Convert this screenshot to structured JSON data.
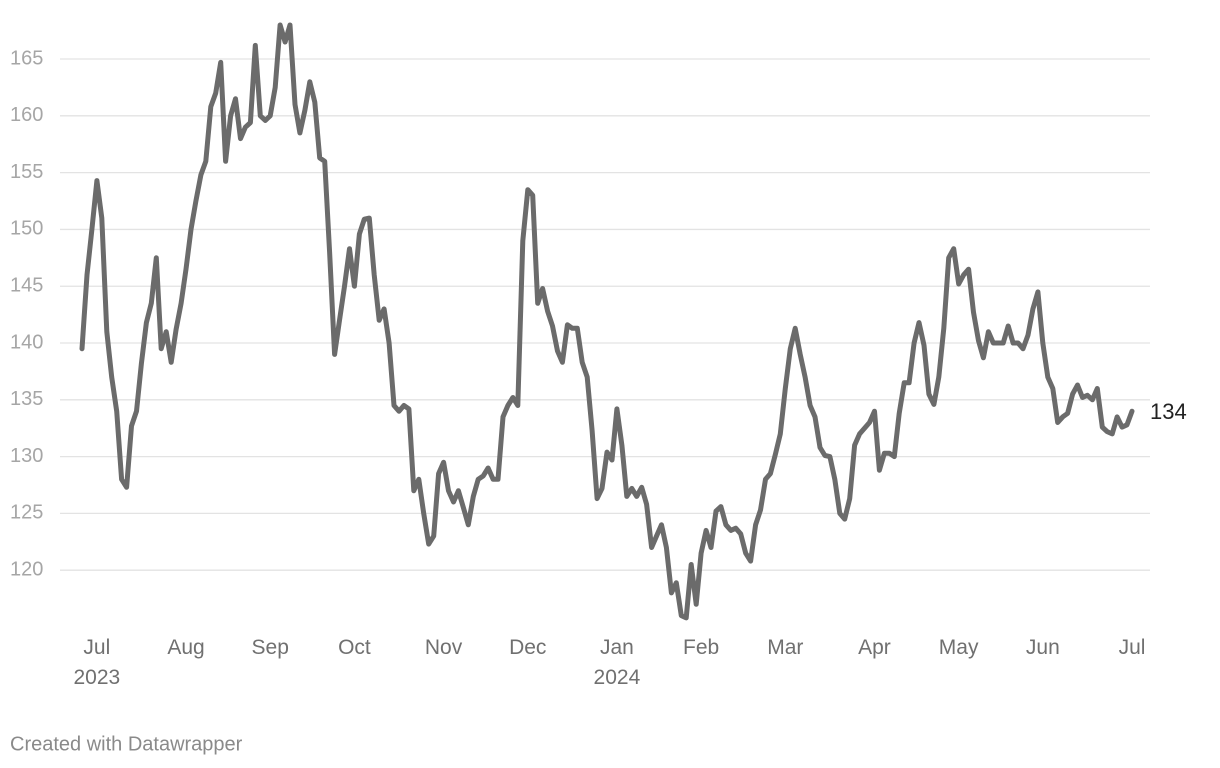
{
  "chart_data": {
    "type": "line",
    "categories": [
      null,
      null,
      null,
      "Jul 2023",
      null,
      null,
      null,
      null,
      null,
      null,
      null,
      null,
      null,
      null,
      null,
      null,
      null,
      null,
      null,
      null,
      null,
      "Aug",
      null,
      null,
      null,
      null,
      null,
      null,
      null,
      null,
      null,
      null,
      null,
      null,
      null,
      null,
      null,
      null,
      "Sep",
      null,
      null,
      null,
      null,
      null,
      null,
      null,
      null,
      null,
      null,
      null,
      null,
      null,
      null,
      null,
      null,
      "Oct",
      null,
      null,
      null,
      null,
      null,
      null,
      null,
      null,
      null,
      null,
      null,
      null,
      null,
      null,
      null,
      null,
      null,
      "Nov",
      null,
      null,
      null,
      null,
      null,
      null,
      null,
      null,
      null,
      null,
      null,
      null,
      null,
      null,
      null,
      null,
      "Dec",
      null,
      null,
      null,
      null,
      null,
      null,
      null,
      null,
      null,
      null,
      null,
      null,
      null,
      null,
      null,
      null,
      null,
      "Jan 2024",
      null,
      null,
      null,
      null,
      null,
      null,
      null,
      null,
      null,
      null,
      null,
      null,
      null,
      null,
      null,
      null,
      "Feb",
      null,
      null,
      null,
      null,
      null,
      null,
      null,
      null,
      null,
      null,
      null,
      null,
      null,
      null,
      null,
      null,
      "Mar",
      null,
      null,
      null,
      null,
      null,
      null,
      null,
      null,
      null,
      null,
      null,
      null,
      null,
      null,
      null,
      null,
      null,
      "Apr",
      null,
      null,
      null,
      null,
      null,
      null,
      null,
      null,
      null,
      null,
      null,
      null,
      null,
      null,
      null,
      null,
      "May",
      null,
      null,
      null,
      null,
      null,
      null,
      null,
      null,
      null,
      null,
      null,
      null,
      null,
      null,
      null,
      null,
      "Jun",
      null,
      null,
      null,
      null,
      null,
      null,
      null,
      null,
      null,
      null,
      null,
      null,
      null,
      null,
      null,
      null,
      null,
      "Jul"
    ],
    "series": [
      {
        "color": "#6b6b6b",
        "values": [
          139.5,
          146,
          150,
          154.3,
          151,
          141,
          137,
          134,
          128,
          127.3,
          132.7,
          134,
          138.2,
          141.8,
          143.5,
          147.5,
          139.5,
          141,
          138.3,
          141.2,
          143.5,
          146.5,
          150,
          152.5,
          154.8,
          156,
          160.8,
          162,
          164.7,
          156,
          160,
          161.5,
          158,
          159,
          159.4,
          166.2,
          160,
          159.6,
          160,
          162.5,
          168,
          166.5,
          168,
          161,
          158.5,
          160.5,
          163,
          161.2,
          156.3,
          156,
          148,
          139,
          142,
          145,
          148.3,
          145,
          149.6,
          150.9,
          151,
          146,
          142,
          143,
          140,
          134.5,
          134,
          134.5,
          134.2,
          127,
          128,
          125,
          122.3,
          123,
          128.5,
          129.5,
          127,
          126,
          127,
          125.5,
          124,
          126.5,
          128,
          128.3,
          129,
          128,
          128,
          133.5,
          134.5,
          135.2,
          134.5,
          149,
          153.5,
          153,
          143.5,
          144.8,
          142.8,
          141.5,
          139.3,
          138.3,
          141.6,
          141.3,
          141.3,
          138.3,
          137,
          132.3,
          126.3,
          127.2,
          130.4,
          129.7,
          134.2,
          131,
          126.5,
          127.2,
          126.5,
          127.3,
          125.8,
          122,
          123,
          124,
          122,
          118,
          118.9,
          116,
          115.8,
          120.5,
          117,
          121.5,
          123.5,
          122,
          125.2,
          125.6,
          124,
          123.5,
          123.7,
          123.2,
          121.5,
          120.8,
          124,
          125.3,
          128,
          128.5,
          130.2,
          132,
          136,
          139.5,
          141.3,
          139,
          137,
          134.5,
          133.5,
          130.8,
          130.1,
          130,
          128,
          125,
          124.5,
          126.3,
          131,
          132,
          132.5,
          133,
          134,
          128.8,
          130.3,
          130.3,
          130,
          133.8,
          136.5,
          136.5,
          140,
          141.8,
          139.8,
          135.5,
          134.6,
          137,
          141.3,
          147.5,
          148.3,
          145.2,
          146,
          146.5,
          142.7,
          140.2,
          138.7,
          141,
          140,
          140,
          140,
          141.5,
          140,
          140,
          139.5,
          140.7,
          143,
          144.5,
          140,
          137,
          136,
          133,
          133.5,
          133.8,
          135.5,
          136.3,
          135.2,
          135.4,
          135,
          136,
          132.6,
          132.2,
          132,
          133.5,
          132.6,
          132.8,
          134
        ]
      }
    ],
    "ylim": [
      115,
      169
    ],
    "yticks": [
      120,
      125,
      130,
      135,
      140,
      145,
      150,
      155,
      160,
      165
    ],
    "grid": true,
    "credit": "Created with Datawrapper"
  }
}
